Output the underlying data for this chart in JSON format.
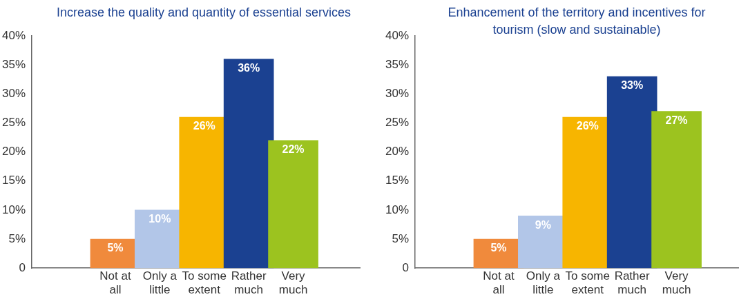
{
  "chart_data": [
    {
      "type": "bar",
      "title": "Increase the quality and quantity of essential services",
      "categories": [
        "Not at all",
        "Only a little",
        "To some extent",
        "Rather much",
        "Very much"
      ],
      "values": [
        5,
        10,
        26,
        36,
        22
      ],
      "colors": [
        "#f08a3c",
        "#b2c6e8",
        "#f7b500",
        "#1b4191",
        "#9cc31f"
      ],
      "value_labels": [
        "5%",
        "10%",
        "26%",
        "36%",
        "22%"
      ],
      "ylim": [
        0,
        40
      ],
      "yticks": [
        0,
        {
          "value": 5,
          "label": "5%"
        },
        {
          "value": 10,
          "label": "10%"
        },
        {
          "value": 15,
          "label": "15%"
        },
        {
          "value": 20,
          "label": "20%"
        },
        {
          "value": 25,
          "label": "25%"
        },
        {
          "value": 30,
          "label": "30%"
        },
        {
          "value": 35,
          "label": "35%"
        },
        {
          "value": 40,
          "label": "40%"
        }
      ],
      "grid": false,
      "legend": false
    },
    {
      "type": "bar",
      "title": "Enhancement of the territory and incentives for tourism (slow and sustainable)",
      "categories": [
        "Not at all",
        "Only a little",
        "To some extent",
        "Rather much",
        "Very much"
      ],
      "values": [
        5,
        9,
        26,
        33,
        27
      ],
      "colors": [
        "#f08a3c",
        "#b2c6e8",
        "#f7b500",
        "#1b4191",
        "#9cc31f"
      ],
      "value_labels": [
        "5%",
        "9%",
        "26%",
        "33%",
        "27%"
      ],
      "ylim": [
        0,
        40
      ],
      "yticks": [
        0,
        {
          "value": 5,
          "label": "5%"
        },
        {
          "value": 10,
          "label": "10%"
        },
        {
          "value": 15,
          "label": "15%"
        },
        {
          "value": 20,
          "label": "20%"
        },
        {
          "value": 25,
          "label": "25%"
        },
        {
          "value": 30,
          "label": "30%"
        },
        {
          "value": 35,
          "label": "35%"
        },
        {
          "value": 40,
          "label": "40%"
        }
      ],
      "grid": false,
      "legend": false
    }
  ]
}
